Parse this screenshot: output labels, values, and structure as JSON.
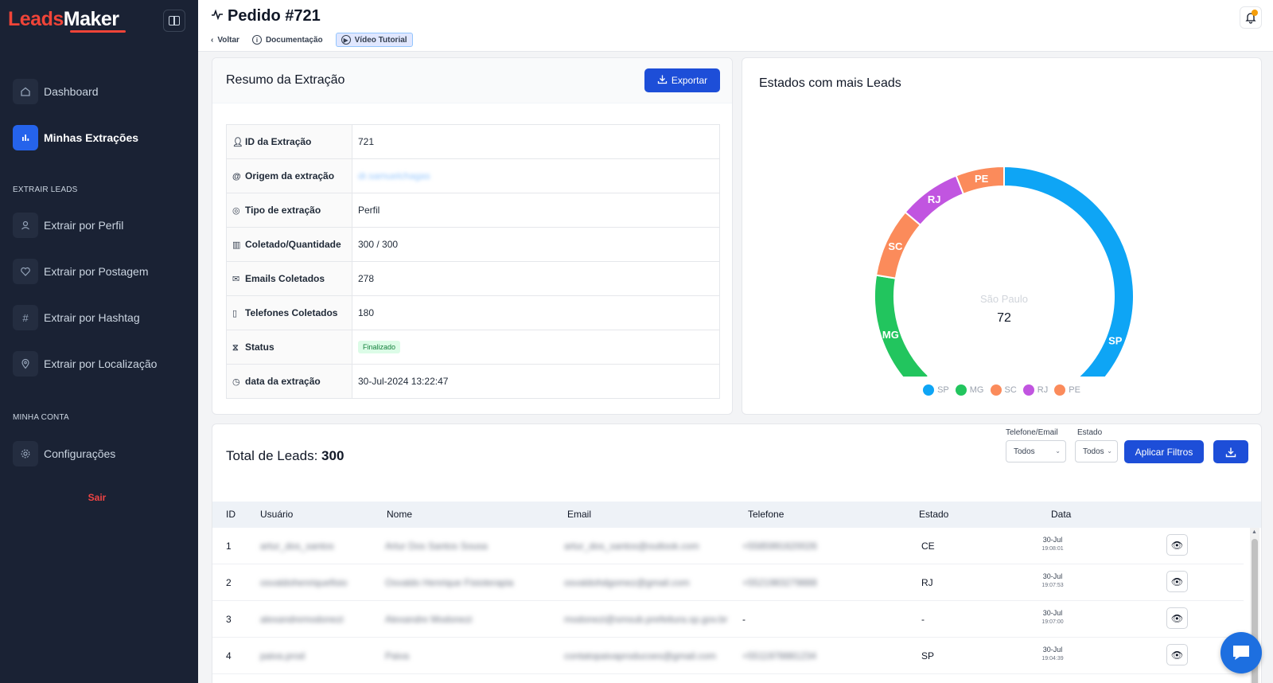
{
  "sidebar": {
    "logo_part1": "Leads",
    "logo_part2": "Maker",
    "items": [
      {
        "label": "Dashboard",
        "icon": "home-icon"
      },
      {
        "label": "Minhas Extrações",
        "icon": "bar-chart-icon"
      },
      {
        "label": "Extrair por Perfil",
        "icon": "user-icon"
      },
      {
        "label": "Extrair por Postagem",
        "icon": "heart-icon"
      },
      {
        "label": "Extrair por Hashtag",
        "icon": "hashtag-icon"
      },
      {
        "label": "Extrair por Localização",
        "icon": "location-pin-icon"
      },
      {
        "label": "Configurações",
        "icon": "gear-icon"
      }
    ],
    "section_extrair": "EXTRAIR LEADS",
    "section_conta": "MINHA CONTA",
    "logout": "Sair"
  },
  "header": {
    "title": "Pedido #721",
    "back": "Voltar",
    "docs": "Documentação",
    "tutorial": "Vídeo Tutorial"
  },
  "summary": {
    "title": "Resumo da Extração",
    "export_label": "Exportar",
    "rows": [
      {
        "key": "ID da Extração",
        "value": "721"
      },
      {
        "key": "Origem da extração",
        "value": "dr.samuelchagas"
      },
      {
        "key": "Tipo de extração",
        "value": "Perfil"
      },
      {
        "key": "Coletado/Quantidade",
        "value": "300 / 300"
      },
      {
        "key": "Emails Coletados",
        "value": "278"
      },
      {
        "key": "Telefones Coletados",
        "value": "180"
      },
      {
        "key": "Status",
        "value": "Finalizado"
      },
      {
        "key": "data da extração",
        "value": "30-Jul-2024 13:22:47"
      }
    ]
  },
  "chart": {
    "title": "Estados com mais Leads",
    "center_label": "São Paulo",
    "center_value": "72"
  },
  "chart_data": {
    "type": "pie",
    "categories": [
      "SP",
      "MG",
      "SC",
      "RJ",
      "PE"
    ],
    "values": [
      72,
      18,
      10,
      9,
      7
    ],
    "colors": [
      "#0ea5f5",
      "#22c55e",
      "#fb8b5b",
      "#c155e0",
      "#fb8b5b"
    ],
    "donut": true,
    "legend_placement": "bottom"
  },
  "leads": {
    "title_prefix": "Total de Leads:",
    "total": "300",
    "filter_phone_label": "Telefone/Email",
    "filter_phone_value": "Todos",
    "filter_state_label": "Estado",
    "filter_state_value": "Todos",
    "apply_label": "Aplicar Filtros",
    "columns": [
      "ID",
      "Usuário",
      "Nome",
      "Email",
      "Telefone",
      "Estado",
      "Data"
    ],
    "rows": [
      {
        "id": "1",
        "user": "artur_dos_santos",
        "name": "Artur Dos Santos Sousa",
        "email": "artur_dos_santos@outlook.com",
        "phone": "+5585991620026",
        "state": "CE",
        "date": "30-Jul",
        "time": "19:08:01"
      },
      {
        "id": "2",
        "user": "osvaldohenriquefisio",
        "name": "Osvaldo Henrique Fisioterapia",
        "email": "osvaldohdgomez@gmail.com",
        "phone": "+5521983279888",
        "state": "RJ",
        "date": "30-Jul",
        "time": "19:07:53"
      },
      {
        "id": "3",
        "user": "alexandremodonezi",
        "name": "Alexandre Modonezi",
        "email": "modonezi@smsub.prefeitura.sp.gov.br",
        "phone": "-",
        "state": "-",
        "date": "30-Jul",
        "time": "19:07:00"
      },
      {
        "id": "4",
        "user": "paiva.prod",
        "name": "Paiva",
        "email": "contatopaivaproducoes@gmail.com",
        "phone": "+5511978881234",
        "state": "SP",
        "date": "30-Jul",
        "time": "19:04:39"
      }
    ]
  }
}
